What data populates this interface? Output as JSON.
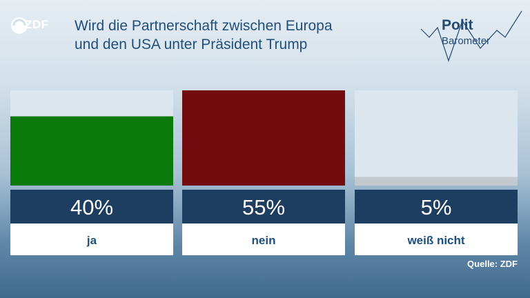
{
  "header": {
    "logo_text": "ZDF",
    "title_line1": "Wird die Partnerschaft zwischen Europa",
    "title_line2": "und den USA unter Präsident Trump",
    "brand_line1": "Polit",
    "brand_line2": "Barometer"
  },
  "colors": {
    "title": "#1f4f7a",
    "bar_bg": "#dbe6ee",
    "value_box": "#1d3e61",
    "label_box": "#ffffff",
    "label_text": "#1f4f7a"
  },
  "chart_data": {
    "type": "bar",
    "categories": [
      "ja",
      "nein",
      "weiß nicht"
    ],
    "values": [
      40,
      55,
      5
    ],
    "value_labels": [
      "40%",
      "55%",
      "5%"
    ],
    "colors": [
      "#0a7b0a",
      "#720c0e",
      "#c4c9ce"
    ],
    "ylim": [
      0,
      55
    ],
    "source": "Quelle: ZDF"
  }
}
